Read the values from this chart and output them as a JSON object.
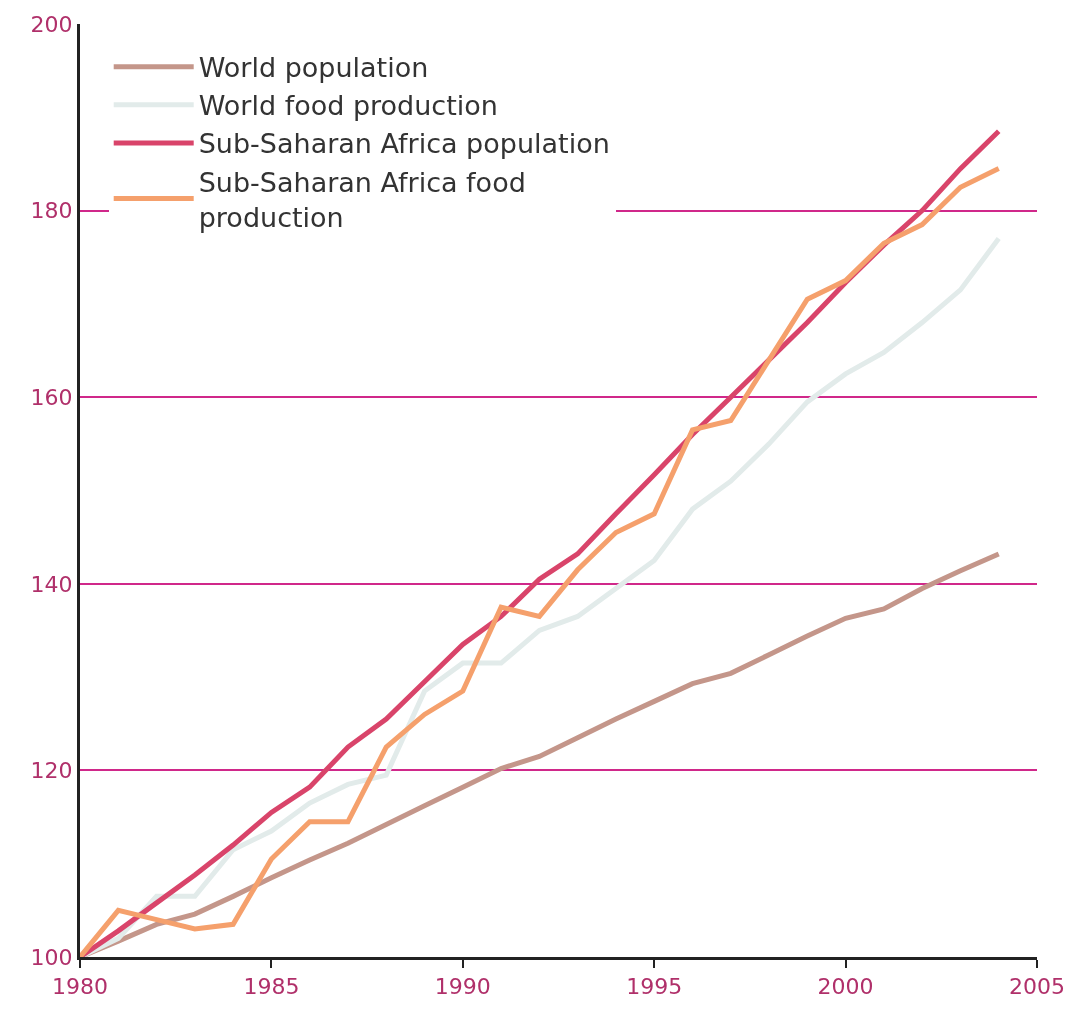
{
  "chart_data": {
    "type": "line",
    "x": [
      1980,
      1981,
      1982,
      1983,
      1984,
      1985,
      1986,
      1987,
      1988,
      1989,
      1990,
      1991,
      1992,
      1993,
      1994,
      1995,
      1996,
      1997,
      1998,
      1999,
      2000,
      2001,
      2002,
      2003,
      2004
    ],
    "series": [
      {
        "name": "World population",
        "color": "#c4968a",
        "values": [
          100,
          101.7,
          103.5,
          104.6,
          106.5,
          108.5,
          110.4,
          112.2,
          114.2,
          116.2,
          118.2,
          120.2,
          121.5,
          123.5,
          125.5,
          127.4,
          129.3,
          130.4,
          132.4,
          134.4,
          136.3,
          137.3,
          139.5,
          141.4,
          143.2
        ]
      },
      {
        "name": "World food production",
        "color": "#e2ebea",
        "values": [
          100,
          102,
          106.5,
          106.5,
          111.5,
          113.5,
          116.5,
          118.5,
          119.5,
          128.5,
          131.5,
          131.5,
          135,
          136.5,
          139.5,
          142.5,
          148,
          151,
          155,
          159.5,
          162.5,
          164.8,
          168,
          171.5,
          177
        ]
      },
      {
        "name": "Sub-Saharan Africa population",
        "color": "#d9446a",
        "values": [
          100,
          102.8,
          105.8,
          108.8,
          112,
          115.5,
          118.2,
          122.5,
          125.5,
          129.5,
          133.5,
          136.5,
          140.5,
          143.2,
          147.5,
          151.7,
          156,
          160,
          164,
          168,
          172.3,
          176.3,
          180,
          184.5,
          188.5
        ]
      },
      {
        "name": "Sub-Saharan Africa food\nproduction",
        "color": "#f5a06c",
        "values": [
          100,
          105,
          104,
          103,
          103.5,
          110.5,
          114.5,
          114.5,
          122.5,
          126,
          128.5,
          137.5,
          136.5,
          141.5,
          145.5,
          147.5,
          156.5,
          157.5,
          164,
          170.5,
          172.5,
          176.5,
          178.5,
          182.5,
          184.5
        ]
      }
    ],
    "xlim": [
      1980,
      2005
    ],
    "xticks": [
      1980,
      1985,
      1990,
      1995,
      2000,
      2005
    ],
    "ylim": [
      100,
      200
    ],
    "yticks": [
      100,
      120,
      140,
      160,
      180,
      200
    ],
    "grid": "y",
    "legend": "top left",
    "marker": "none",
    "line_style": "solid"
  }
}
